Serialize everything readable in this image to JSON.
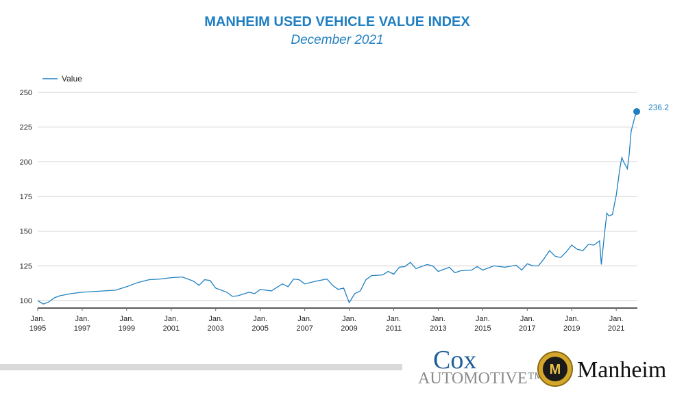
{
  "chart_data": {
    "type": "line",
    "title": "MANHEIM USED VEHICLE VALUE INDEX",
    "subtitle": "December 2021",
    "x": [
      1995.0,
      1995.25,
      1995.5,
      1995.75,
      1996.0,
      1996.5,
      1997.0,
      1997.5,
      1998.0,
      1998.5,
      1999.0,
      1999.5,
      2000.0,
      2000.5,
      2001.0,
      2001.5,
      2002.0,
      2002.25,
      2002.5,
      2002.75,
      2003.0,
      2003.5,
      2003.75,
      2004.0,
      2004.5,
      2004.75,
      2005.0,
      2005.5,
      2006.0,
      2006.25,
      2006.5,
      2006.75,
      2007.0,
      2007.5,
      2008.0,
      2008.25,
      2008.5,
      2008.75,
      2009.0,
      2009.25,
      2009.5,
      2009.75,
      2010.0,
      2010.5,
      2010.75,
      2011.0,
      2011.25,
      2011.5,
      2011.75,
      2012.0,
      2012.5,
      2012.75,
      2013.0,
      2013.5,
      2013.75,
      2014.0,
      2014.5,
      2014.75,
      2015.0,
      2015.5,
      2016.0,
      2016.5,
      2016.75,
      2017.0,
      2017.25,
      2017.5,
      2017.75,
      2018.0,
      2018.25,
      2018.5,
      2018.75,
      2019.0,
      2019.25,
      2019.5,
      2019.75,
      2020.0,
      2020.25,
      2020.33,
      2020.5,
      2020.58,
      2020.67,
      2020.83,
      2021.0,
      2021.17,
      2021.25,
      2021.33,
      2021.5,
      2021.58,
      2021.67,
      2021.83,
      2021.92
    ],
    "series": [
      {
        "name": "Value",
        "color": "#1f7fc1",
        "values": [
          100,
          97.5,
          99,
          102,
          103.5,
          105,
          106,
          106.5,
          107,
          107.5,
          110,
          113,
          115,
          115.5,
          116.5,
          117,
          114,
          111,
          115,
          114.5,
          109,
          106,
          103,
          103.5,
          106,
          105,
          108,
          107,
          112,
          110,
          115.5,
          115,
          112,
          114,
          115.5,
          111,
          108,
          109,
          98.5,
          105,
          107,
          115,
          118,
          118.5,
          121,
          119,
          124,
          124.5,
          127.5,
          123,
          126,
          125,
          121,
          124,
          120,
          121.5,
          122,
          124.5,
          122,
          125,
          124,
          125.5,
          122,
          126.5,
          125,
          125,
          130,
          136,
          132,
          131,
          135,
          140,
          137,
          136,
          140.5,
          140,
          143,
          126,
          152,
          163,
          161,
          162,
          176,
          196,
          203,
          200,
          195,
          205,
          222,
          232,
          236.2
        ]
      }
    ],
    "xlim": [
      1995,
      2021.95
    ],
    "xticks": [
      {
        "value": 1995,
        "label": "Jan. 1995"
      },
      {
        "value": 1997,
        "label": "Jan. 1997"
      },
      {
        "value": 1999,
        "label": "Jan. 1999"
      },
      {
        "value": 2001,
        "label": "Jan. 2001"
      },
      {
        "value": 2003,
        "label": "Jan. 2003"
      },
      {
        "value": 2005,
        "label": "Jan. 2005"
      },
      {
        "value": 2007,
        "label": "Jan. 2007"
      },
      {
        "value": 2009,
        "label": "Jan. 2009"
      },
      {
        "value": 2011,
        "label": "Jan. 2011"
      },
      {
        "value": 2013,
        "label": "Jan. 2013"
      },
      {
        "value": 2015,
        "label": "Jan. 2015"
      },
      {
        "value": 2017,
        "label": "Jan. 2017"
      },
      {
        "value": 2019,
        "label": "Jan. 2019"
      },
      {
        "value": 2021,
        "label": "Jan. 2021"
      }
    ],
    "ylim": [
      94.6,
      250
    ],
    "yticks": [
      100,
      125,
      150,
      175,
      200,
      225,
      250
    ],
    "grid": true,
    "legend": "top-left"
  },
  "footer": {
    "cox": "Cox",
    "automotive": "AUTOMOTIVE™",
    "manheim": "Manheim",
    "badge": "M"
  }
}
